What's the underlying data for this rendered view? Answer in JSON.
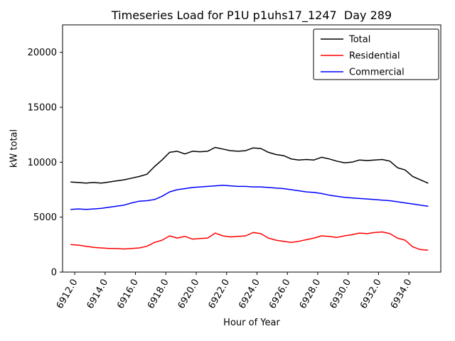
{
  "chart_data": {
    "type": "line",
    "title": "Timeseries Load for P1U p1uhs17_1247  Day 289",
    "xlabel": "Hour of Year",
    "ylabel": "kW total",
    "xlim": [
      6911.2,
      6936.1
    ],
    "ylim": [
      0,
      22500
    ],
    "grid": false,
    "legend": {
      "position": "upper right",
      "entries": [
        "Total",
        "Residential",
        "Commercial"
      ]
    },
    "xticks": {
      "values": [
        6912,
        6914,
        6916,
        6918,
        6920,
        6922,
        6924,
        6926,
        6928,
        6930,
        6932,
        6934
      ],
      "labels": [
        "6912.0",
        "6914.0",
        "6916.0",
        "6918.0",
        "6920.0",
        "6922.0",
        "6924.0",
        "6926.0",
        "6928.0",
        "6930.0",
        "6932.0",
        "6934.0"
      ],
      "rotation": -60
    },
    "yticks": {
      "values": [
        0,
        5000,
        10000,
        15000,
        20000
      ],
      "labels": [
        "0",
        "5000",
        "10000",
        "15000",
        "20000"
      ]
    },
    "x": [
      6911.75,
      6912.25,
      6912.75,
      6913.25,
      6913.75,
      6914.25,
      6914.75,
      6915.25,
      6915.75,
      6916.25,
      6916.75,
      6917.25,
      6917.75,
      6918.25,
      6918.75,
      6919.25,
      6919.75,
      6920.25,
      6920.75,
      6921.25,
      6921.75,
      6922.25,
      6922.75,
      6923.25,
      6923.75,
      6924.25,
      6924.75,
      6925.25,
      6925.75,
      6926.25,
      6926.75,
      6927.25,
      6927.75,
      6928.25,
      6928.75,
      6929.25,
      6929.75,
      6930.25,
      6930.75,
      6931.25,
      6931.75,
      6932.25,
      6932.75,
      6933.25,
      6933.75,
      6934.25,
      6934.75,
      6935.25
    ],
    "series": [
      {
        "name": "Total",
        "color": "#000000",
        "values": [
          8200,
          8150,
          8100,
          8150,
          8100,
          8200,
          8300,
          8400,
          8550,
          8700,
          8900,
          9600,
          10200,
          10900,
          11000,
          10750,
          11000,
          10950,
          11000,
          11350,
          11200,
          11050,
          11000,
          11050,
          11300,
          11250,
          10900,
          10700,
          10600,
          10300,
          10200,
          10250,
          10200,
          10450,
          10300,
          10100,
          9950,
          10000,
          10200,
          10150,
          10200,
          10250,
          10100,
          9500,
          9300,
          8700,
          8400,
          8100
        ]
      },
      {
        "name": "Residential",
        "color": "#ff0000",
        "values": [
          2500,
          2450,
          2350,
          2250,
          2200,
          2150,
          2150,
          2100,
          2150,
          2200,
          2350,
          2700,
          2900,
          3300,
          3100,
          3250,
          3000,
          3050,
          3100,
          3550,
          3300,
          3200,
          3250,
          3300,
          3600,
          3500,
          3100,
          2900,
          2800,
          2700,
          2800,
          2950,
          3100,
          3300,
          3250,
          3150,
          3300,
          3400,
          3550,
          3500,
          3600,
          3650,
          3500,
          3100,
          2900,
          2300,
          2050,
          2000
        ]
      },
      {
        "name": "Commercial",
        "color": "#0000ff",
        "values": [
          5700,
          5750,
          5700,
          5750,
          5800,
          5900,
          6000,
          6100,
          6300,
          6450,
          6500,
          6600,
          6900,
          7300,
          7500,
          7600,
          7700,
          7750,
          7800,
          7850,
          7900,
          7850,
          7800,
          7800,
          7750,
          7750,
          7700,
          7650,
          7600,
          7500,
          7400,
          7300,
          7250,
          7150,
          7000,
          6900,
          6800,
          6750,
          6700,
          6650,
          6600,
          6550,
          6500,
          6400,
          6300,
          6200,
          6100,
          6000
        ]
      }
    ]
  }
}
